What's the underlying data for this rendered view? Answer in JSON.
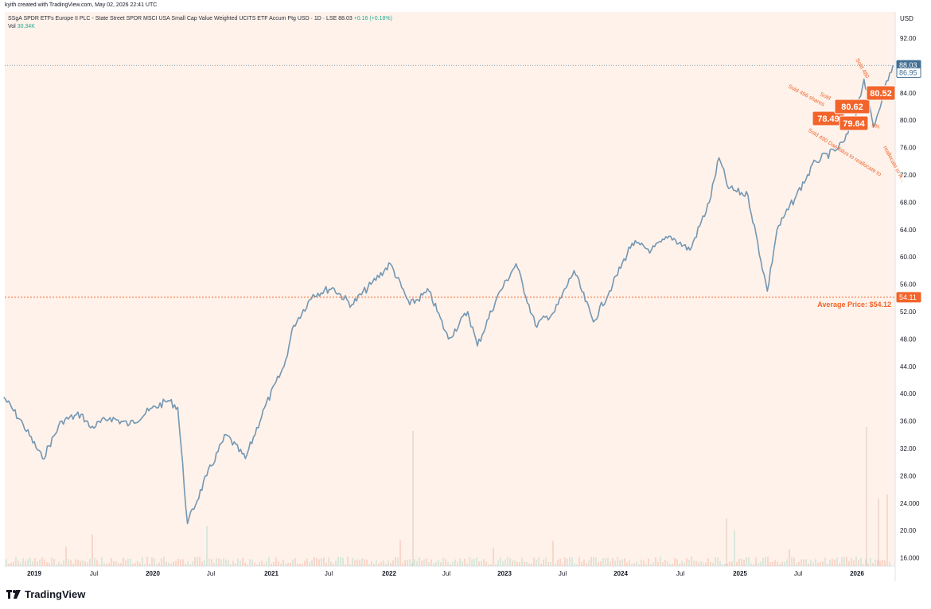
{
  "caption": "kyith created with TradingView.com, May 02, 2026 22:41 UTC",
  "header": {
    "symbol": "SSgA SPDR ETFs Europe II PLC - State Street SPDR MSCI USA Small Cap Value Weighted UCITS ETF Accum Ptg USD · 1D · LSE",
    "price": "88.03",
    "change": "+0.16 (+0.18%)",
    "vol_label": "Vol",
    "vol_value": "30.34K"
  },
  "currency": "USD",
  "brand": "TradingView",
  "colors": {
    "line": "#7497b3",
    "background": "#fef2ea",
    "accent": "#f2642a",
    "last_price": "#426f93"
  },
  "chart_data": {
    "type": "line",
    "ylim": [
      14,
      94
    ],
    "y_ticks": [
      "92.00",
      "88.00",
      "84.00",
      "80.00",
      "76.00",
      "72.00",
      "68.00",
      "64.00",
      "60.00",
      "56.00",
      "52.00",
      "48.00",
      "44.00",
      "40.00",
      "36.00",
      "32.00",
      "28.00",
      "24.000",
      "20.00",
      "16.000"
    ],
    "x_ticks": [
      "2019",
      "Jul",
      "2020",
      "Jul",
      "2021",
      "Jul",
      "2022",
      "Jul",
      "2023",
      "Jul",
      "2024",
      "Jul",
      "2025",
      "Jul",
      "2026"
    ],
    "series": [
      {
        "x": [
          "2018-09",
          "2018-11",
          "2019-01",
          "2019-03",
          "2019-05",
          "2019-06",
          "2019-08",
          "2019-10",
          "2019-12",
          "2020-02",
          "2020-03",
          "2020-04",
          "2020-06",
          "2020-08",
          "2020-10",
          "2020-12",
          "2021-02",
          "2021-03",
          "2021-05",
          "2021-07",
          "2021-09",
          "2021-11",
          "2022-01",
          "2022-03",
          "2022-05",
          "2022-07",
          "2022-09",
          "2022-10",
          "2022-12",
          "2023-02",
          "2023-04",
          "2023-06",
          "2023-08",
          "2023-10",
          "2023-12",
          "2024-02",
          "2024-04",
          "2024-06",
          "2024-08",
          "2024-10",
          "2024-11",
          "2024-12",
          "2025-02",
          "2025-04",
          "2025-05",
          "2025-07",
          "2025-09",
          "2025-11",
          "2025-12",
          "2026-01",
          "2026-02",
          "2026-03",
          "2026-04",
          "2026-05"
        ],
        "y": [
          39.5,
          35.5,
          30.5,
          36,
          37,
          35,
          36.5,
          35.5,
          37.5,
          39,
          38,
          21,
          28,
          34,
          30.5,
          38,
          44,
          50,
          54.5,
          55.5,
          53,
          56,
          59,
          53,
          55,
          48,
          52,
          47,
          54,
          59,
          50,
          52,
          58,
          50.5,
          56,
          62,
          61,
          63,
          61,
          68,
          74.5,
          70,
          69,
          55,
          64,
          69,
          74,
          75.5,
          77,
          80,
          86,
          79,
          84,
          88.03
        ]
      }
    ],
    "volume_note": "Vol 30.34K",
    "average_price_value": 54.11,
    "last_price_value": 88.03,
    "prev_price_value": 86.95,
    "annotations": [
      {
        "label": "78.49",
        "text": "Sold 490 Daedalus to reallocate to"
      },
      {
        "label": "79.64",
        "text": "Sold 496 shares"
      },
      {
        "label": "80.62",
        "text": "Sold"
      },
      {
        "label": "80.52",
        "text": "Sold 480"
      },
      {
        "label": "",
        "text": "reallocate to A..."
      },
      {
        "label": "",
        "text": "5%"
      }
    ],
    "average_price_label": "Average Price: $54.12",
    "average_price_tag": "54.11",
    "last_price_tag": "88.03",
    "prev_price_tag": "86.95"
  }
}
